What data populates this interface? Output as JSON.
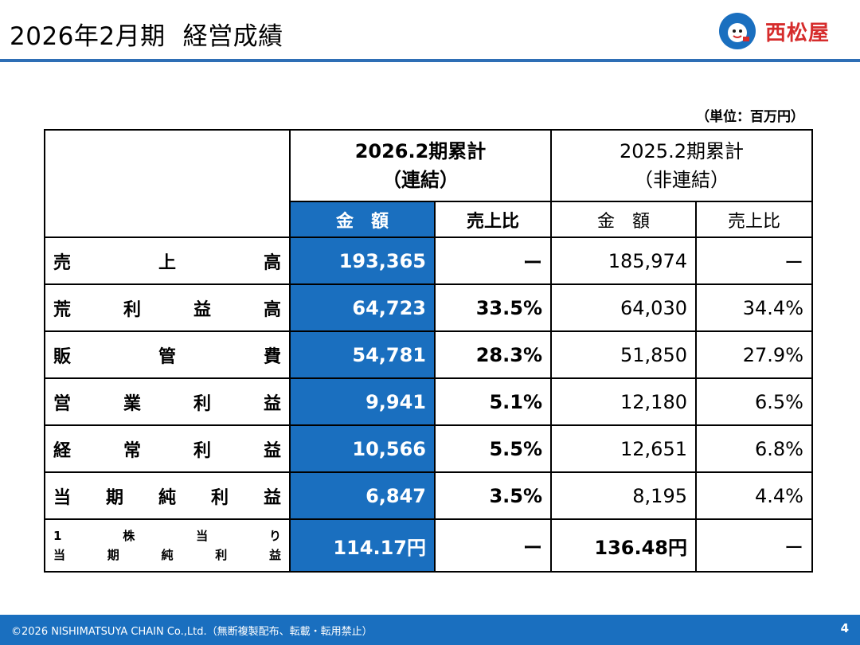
{
  "header": {
    "title_period": "2026年2月期",
    "title_main": "経営成績",
    "logo_name": "西松屋"
  },
  "unit": "（単位：百万円）",
  "table": {
    "col_consolidated": [
      "2026.2期累計",
      "（連結）"
    ],
    "col_nonconsolidated": [
      "2025.2期累計",
      "（非連結）"
    ],
    "sub_amount": "金　額",
    "sub_ratio": "売上比",
    "rows": [
      {
        "label_chars": [
          "売",
          "上",
          "高"
        ],
        "c_amount": "193,365",
        "c_ratio": "ー",
        "n_amount": "185,974",
        "n_ratio": "ー"
      },
      {
        "label_chars": [
          "荒",
          "利",
          "益",
          "高"
        ],
        "c_amount": "64,723",
        "c_ratio": "33.5%",
        "n_amount": "64,030",
        "n_ratio": "34.4%"
      },
      {
        "label_chars": [
          "販",
          "管",
          "費"
        ],
        "c_amount": "54,781",
        "c_ratio": "28.3%",
        "n_amount": "51,850",
        "n_ratio": "27.9%"
      },
      {
        "label_chars": [
          "営",
          "業",
          "利",
          "益"
        ],
        "c_amount": "9,941",
        "c_ratio": "5.1%",
        "n_amount": "12,180",
        "n_ratio": "6.5%"
      },
      {
        "label_chars": [
          "経",
          "常",
          "利",
          "益"
        ],
        "c_amount": "10,566",
        "c_ratio": "5.5%",
        "n_amount": "12,651",
        "n_ratio": "6.8%"
      },
      {
        "label_chars": [
          "当",
          "期",
          "純",
          "利",
          "益"
        ],
        "c_amount": "6,847",
        "c_ratio": "3.5%",
        "n_amount": "8,195",
        "n_ratio": "4.4%"
      }
    ],
    "eps_row": {
      "label_line1": [
        "1",
        "株",
        "当",
        "り"
      ],
      "label_line2": [
        "当",
        "期",
        "純",
        "利",
        "益"
      ],
      "c_amount": "114.17円",
      "c_ratio": "ー",
      "n_amount": "136.48円",
      "n_ratio": "ー"
    }
  },
  "footer": {
    "copyright": "©2026 NISHIMATSUYA CHAIN Co.,Ltd.（無断複製配布、転載・転用禁止）",
    "page": "4"
  },
  "colors": {
    "accent_blue": "#1a6fbf",
    "rule_blue": "#2e6eb5",
    "logo_red": "#d62c2c"
  }
}
